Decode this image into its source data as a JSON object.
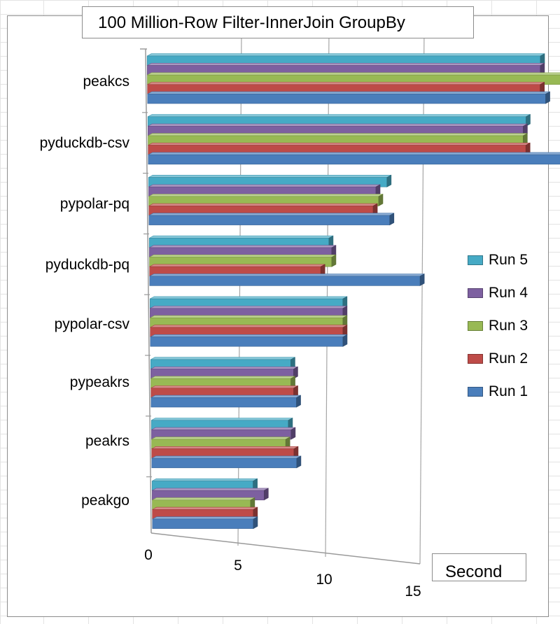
{
  "title": "100 Million-Row Filter-InnerJoin GroupBy",
  "unit_label": "Second",
  "colors": {
    "Run 1": "#4a7ebb",
    "Run 2": "#be4b48",
    "Run 3": "#98b954",
    "Run 4": "#7d60a0",
    "Run 5": "#46aac5"
  },
  "chart_data": {
    "type": "bar",
    "orientation": "horizontal",
    "style": "3d-clustered",
    "title": "100 Million-Row Filter-InnerJoin GroupBy",
    "xlabel": "Second",
    "xlim": [
      0,
      15
    ],
    "xticks": [
      "0",
      "5",
      "10",
      "15"
    ],
    "grid": true,
    "legend_position": "right",
    "categories": [
      "peakcs",
      "pyduckdb-csv",
      "pypolar-pq",
      "pyduckdb-pq",
      "pypolar-csv",
      "pypeakrs",
      "peakrs",
      "peakgo"
    ],
    "series": [
      {
        "name": "Run 5",
        "values": [
          14.1,
          13.6,
          8.6,
          6.5,
          7.0,
          5.1,
          5.0,
          3.7
        ]
      },
      {
        "name": "Run 4",
        "values": [
          14.1,
          13.5,
          8.2,
          6.6,
          7.0,
          5.2,
          5.1,
          4.1
        ]
      },
      {
        "name": "Run 3",
        "values": [
          15.0,
          13.5,
          8.3,
          6.6,
          7.0,
          5.1,
          4.9,
          3.6
        ]
      },
      {
        "name": "Run 2",
        "values": [
          14.1,
          13.6,
          8.1,
          6.2,
          7.0,
          5.2,
          5.2,
          3.7
        ]
      },
      {
        "name": "Run 1",
        "values": [
          14.3,
          15.1,
          8.7,
          9.8,
          7.0,
          5.3,
          5.3,
          3.7
        ]
      }
    ]
  }
}
